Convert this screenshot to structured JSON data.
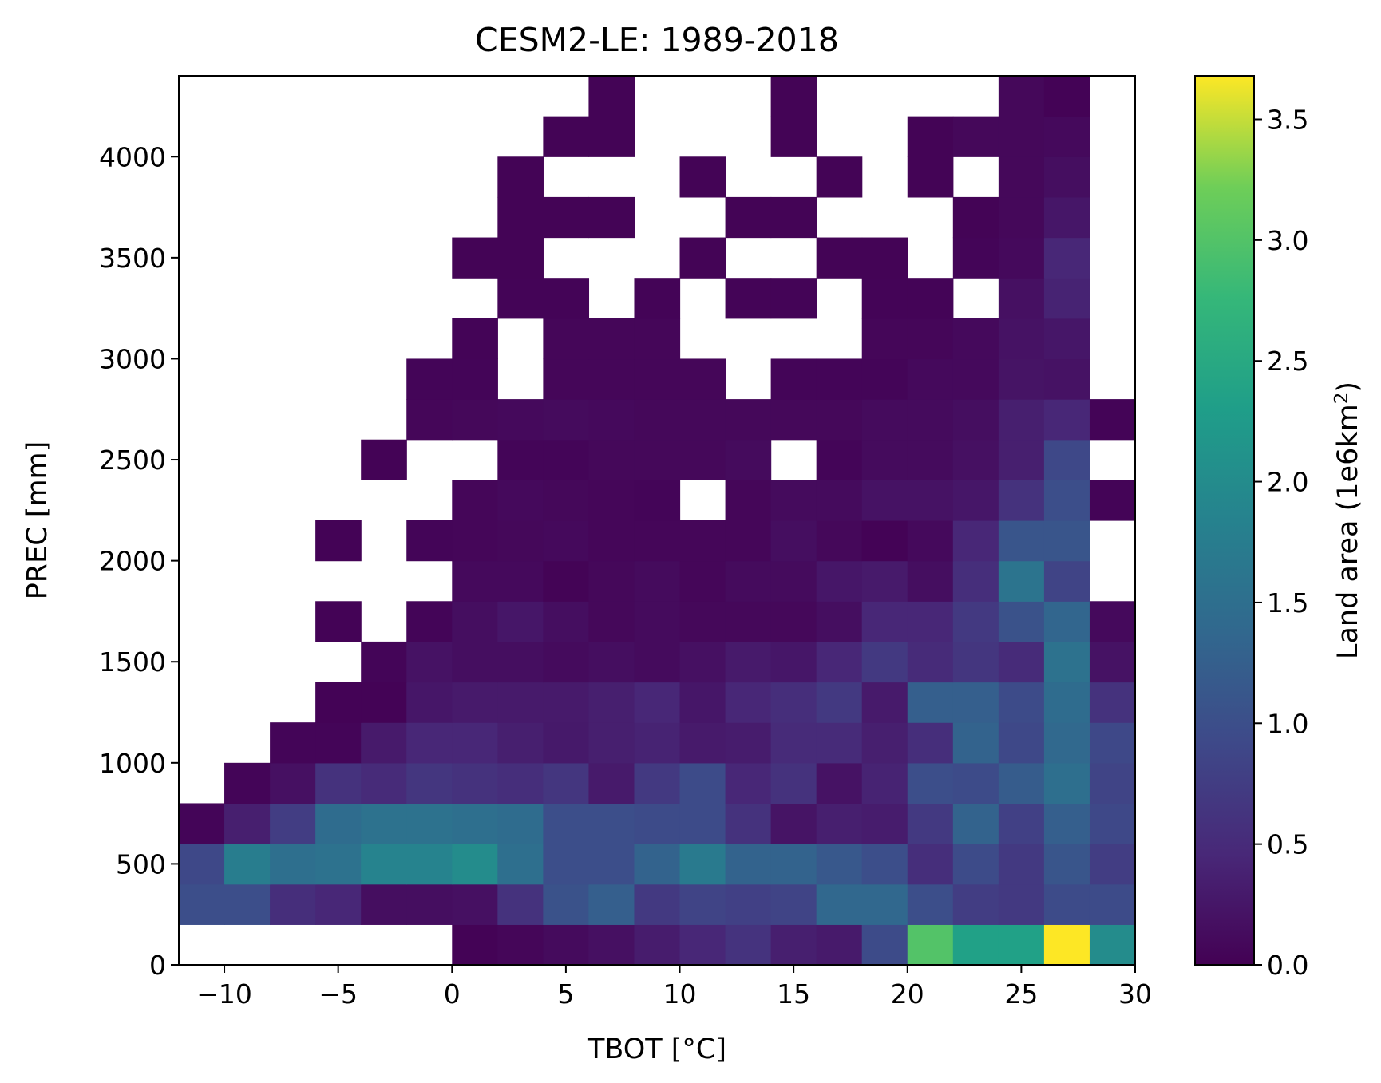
{
  "chart_data": {
    "type": "heatmap",
    "title": "CESM2-LE: 1989-2018",
    "xlabel": "TBOT [°C]",
    "ylabel": "PREC [mm]",
    "colorbar_label_base": "Land area (1e6km",
    "colorbar_label_sup": "2",
    "colorbar_label_end": ")",
    "colormap": "viridis",
    "xlim": [
      -12,
      30
    ],
    "ylim": [
      0,
      4400
    ],
    "clim": [
      0,
      3.68
    ],
    "x_bin_edges": [
      -12,
      -10,
      -8,
      -6,
      -4,
      -2,
      0,
      2,
      4,
      6,
      8,
      10,
      12,
      14,
      16,
      18,
      20,
      22,
      24,
      26,
      28,
      30
    ],
    "y_bin_edges": [
      0,
      200,
      400,
      600,
      800,
      1000,
      1200,
      1400,
      1600,
      1800,
      2000,
      2200,
      2400,
      2600,
      2800,
      3000,
      3200,
      3400,
      3600,
      3800,
      4000,
      4200,
      4400
    ],
    "x_ticks": [
      -10,
      -5,
      0,
      5,
      10,
      15,
      20,
      25,
      30
    ],
    "x_tick_labels": [
      "−10",
      "−5",
      "0",
      "5",
      "10",
      "15",
      "20",
      "25",
      "30"
    ],
    "y_ticks": [
      0,
      500,
      1000,
      1500,
      2000,
      2500,
      3000,
      3500,
      4000
    ],
    "y_tick_labels": [
      "0",
      "500",
      "1000",
      "1500",
      "2000",
      "2500",
      "3000",
      "3500",
      "4000"
    ],
    "colorbar_ticks": [
      0,
      0.5,
      1.0,
      1.5,
      2.0,
      2.5,
      3.0,
      3.5
    ],
    "colorbar_tick_labels": [
      "0.0",
      "0.5",
      "1.0",
      "1.5",
      "2.0",
      "2.5",
      "3.0",
      "3.5"
    ],
    "note_values": "values[row][col]; row 0 = 0-200 mm (bottom), col 0 = -12 to -10 °C; null = empty (white)",
    "values": [
      [
        null,
        null,
        null,
        null,
        null,
        null,
        0.02,
        0.06,
        0.12,
        0.18,
        0.32,
        0.45,
        0.62,
        0.35,
        0.3,
        0.95,
        3.0,
        2.35,
        2.35,
        3.68,
        2.0
      ],
      [
        1.0,
        1.0,
        0.55,
        0.45,
        0.15,
        0.15,
        0.18,
        0.6,
        1.05,
        1.25,
        0.7,
        0.85,
        0.8,
        0.85,
        1.38,
        1.38,
        1.0,
        0.75,
        0.7,
        0.95,
        0.95
      ],
      [
        0.9,
        1.75,
        1.5,
        1.55,
        1.85,
        1.85,
        2.0,
        1.5,
        1.0,
        1.0,
        1.3,
        1.7,
        1.3,
        1.3,
        1.15,
        1.0,
        0.55,
        0.95,
        0.7,
        1.1,
        0.75
      ],
      [
        0.05,
        0.35,
        0.75,
        1.45,
        1.55,
        1.55,
        1.5,
        1.45,
        1.0,
        1.0,
        0.95,
        0.95,
        0.6,
        0.22,
        0.35,
        0.32,
        0.7,
        1.3,
        0.8,
        1.25,
        0.9
      ],
      [
        null,
        0.05,
        0.18,
        0.6,
        0.5,
        0.65,
        0.6,
        0.55,
        0.65,
        0.3,
        0.7,
        0.95,
        0.45,
        0.6,
        0.2,
        0.4,
        1.0,
        0.95,
        1.2,
        1.5,
        0.85
      ],
      [
        null,
        null,
        0.05,
        0.05,
        0.3,
        0.45,
        0.45,
        0.35,
        0.28,
        0.35,
        0.4,
        0.3,
        0.32,
        0.5,
        0.5,
        0.35,
        0.55,
        1.3,
        0.9,
        1.4,
        0.9
      ],
      [
        null,
        null,
        null,
        0.02,
        0.02,
        0.25,
        0.3,
        0.3,
        0.3,
        0.35,
        0.45,
        0.25,
        0.45,
        0.55,
        0.7,
        0.3,
        1.25,
        1.25,
        0.95,
        1.45,
        0.6
      ],
      [
        null,
        null,
        null,
        null,
        0.05,
        0.2,
        0.15,
        0.15,
        0.12,
        0.15,
        0.12,
        0.18,
        0.3,
        0.25,
        0.45,
        0.7,
        0.5,
        0.65,
        0.5,
        1.55,
        0.2
      ],
      [
        null,
        null,
        null,
        0.02,
        null,
        0.05,
        0.15,
        0.25,
        0.15,
        0.08,
        0.12,
        0.08,
        0.08,
        0.08,
        0.15,
        0.45,
        0.45,
        0.7,
        1.05,
        1.35,
        0.1
      ],
      [
        null,
        null,
        null,
        null,
        null,
        null,
        0.1,
        0.1,
        0.03,
        0.08,
        0.12,
        0.06,
        0.12,
        0.12,
        0.25,
        0.3,
        0.15,
        0.55,
        1.6,
        0.85,
        null
      ],
      [
        null,
        null,
        null,
        0.02,
        null,
        0.05,
        0.06,
        0.08,
        0.1,
        0.06,
        0.06,
        0.06,
        0.06,
        0.15,
        0.08,
        0.02,
        0.1,
        0.45,
        1.1,
        1.1,
        null
      ],
      [
        null,
        null,
        null,
        null,
        null,
        null,
        0.06,
        0.1,
        0.08,
        0.06,
        0.05,
        null,
        0.06,
        0.12,
        0.12,
        0.2,
        0.2,
        0.25,
        0.6,
        1.0,
        0.04
      ],
      [
        null,
        null,
        null,
        null,
        0.02,
        null,
        null,
        0.05,
        0.05,
        0.08,
        0.08,
        0.08,
        0.12,
        null,
        0.05,
        0.12,
        0.12,
        0.18,
        0.35,
        0.9,
        null
      ],
      [
        null,
        null,
        null,
        null,
        null,
        0.06,
        0.08,
        0.1,
        0.12,
        0.1,
        0.08,
        0.08,
        0.08,
        0.08,
        0.08,
        0.12,
        0.12,
        0.15,
        0.35,
        0.45,
        0.04
      ],
      [
        null,
        null,
        null,
        null,
        null,
        0.05,
        0.05,
        null,
        0.06,
        0.06,
        0.06,
        0.06,
        null,
        0.05,
        0.05,
        0.05,
        0.1,
        0.1,
        0.22,
        0.2,
        null
      ],
      [
        null,
        null,
        null,
        null,
        null,
        null,
        0.04,
        null,
        0.06,
        0.06,
        0.06,
        null,
        null,
        null,
        null,
        0.06,
        0.06,
        0.1,
        0.2,
        0.25,
        null
      ],
      [
        null,
        null,
        null,
        null,
        null,
        null,
        null,
        0.04,
        0.04,
        null,
        0.04,
        null,
        0.04,
        0.04,
        null,
        0.04,
        0.04,
        null,
        0.18,
        0.4,
        null
      ],
      [
        null,
        null,
        null,
        null,
        null,
        null,
        0.03,
        0.03,
        null,
        null,
        null,
        0.03,
        null,
        null,
        0.03,
        0.03,
        null,
        0.05,
        0.1,
        0.45,
        null
      ],
      [
        null,
        null,
        null,
        null,
        null,
        null,
        null,
        0.03,
        0.03,
        0.03,
        null,
        null,
        0.03,
        0.03,
        null,
        null,
        null,
        0.03,
        0.08,
        0.25,
        null
      ],
      [
        null,
        null,
        null,
        null,
        null,
        null,
        null,
        0.03,
        null,
        null,
        null,
        0.03,
        null,
        null,
        0.03,
        null,
        0.03,
        null,
        0.08,
        0.15,
        null
      ],
      [
        null,
        null,
        null,
        null,
        null,
        null,
        null,
        null,
        0.03,
        0.03,
        null,
        null,
        null,
        0.03,
        null,
        null,
        0.03,
        0.08,
        0.08,
        0.1,
        null
      ],
      [
        null,
        null,
        null,
        null,
        null,
        null,
        null,
        null,
        null,
        0.03,
        null,
        null,
        null,
        0.03,
        null,
        null,
        null,
        null,
        0.08,
        0.02,
        null
      ]
    ]
  }
}
